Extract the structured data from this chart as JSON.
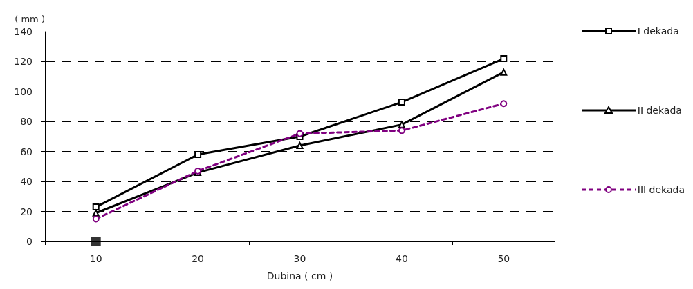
{
  "chart_data": {
    "type": "line",
    "xlabel": "Dubina ( cm )",
    "ylabel": "( mm )",
    "categories": [
      "10",
      "20",
      "30",
      "40",
      "50"
    ],
    "series": [
      {
        "name": "I dekada",
        "color": "#000000",
        "marker": "square",
        "line_style": "solid",
        "values": [
          23,
          58,
          70,
          93,
          122
        ]
      },
      {
        "name": "II dekada",
        "color": "#000000",
        "marker": "triangle",
        "line_style": "solid",
        "values": [
          19,
          46,
          64,
          78,
          113
        ]
      },
      {
        "name": "III dekada",
        "color": "#800080",
        "marker": "circle",
        "line_style": "dashed",
        "values": [
          15,
          47,
          72,
          74,
          92
        ]
      },
      {
        "type": "scatter",
        "color": "#000000",
        "marker": "square",
        "values": [
          0,
          null,
          null,
          null,
          null
        ]
      }
    ],
    "ylim": [
      0,
      140
    ],
    "yticks": [
      0,
      20,
      40,
      60,
      80,
      100,
      120,
      140
    ],
    "grid": "y",
    "legend": "right"
  }
}
